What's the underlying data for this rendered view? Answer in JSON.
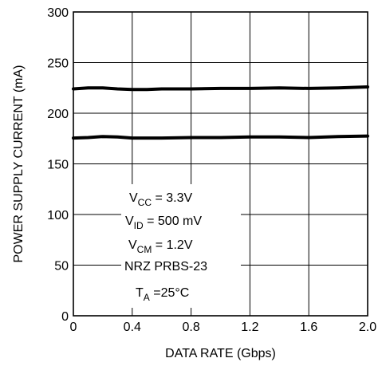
{
  "chart_data": {
    "type": "line",
    "xlabel": "DATA RATE (Gbps)",
    "ylabel": "POWER SUPPLY CURRENT (mA)",
    "xlim": [
      0,
      2.0
    ],
    "ylim": [
      0,
      300
    ],
    "x_ticks": [
      "0",
      "0.4",
      "0.8",
      "1.2",
      "1.6",
      "2.0"
    ],
    "y_ticks": [
      "0",
      "50",
      "100",
      "150",
      "200",
      "250",
      "300"
    ],
    "grid": true,
    "series": [
      {
        "x": [
          0,
          0.1,
          0.2,
          0.3,
          0.4,
          0.5,
          0.6,
          0.8,
          1.0,
          1.2,
          1.4,
          1.6,
          1.8,
          2.0
        ],
        "values": [
          224,
          225,
          225,
          224,
          223.5,
          223.5,
          224,
          224,
          224.5,
          224.5,
          225,
          224.5,
          225,
          226
        ]
      },
      {
        "x": [
          0,
          0.1,
          0.2,
          0.3,
          0.4,
          0.5,
          0.6,
          0.8,
          1.0,
          1.2,
          1.4,
          1.6,
          1.8,
          2.0
        ],
        "values": [
          175.5,
          176,
          177,
          176.5,
          175.5,
          175.5,
          175.5,
          176,
          176,
          176.5,
          176.5,
          176,
          177,
          177.5
        ]
      }
    ],
    "annotation": {
      "vcc": {
        "main": "V",
        "sub": "CC",
        "rest": " = 3.3V"
      },
      "vid": {
        "main": "V",
        "sub": "ID",
        "rest": " = 500 mV"
      },
      "vcm": {
        "main": "V",
        "sub": "CM",
        "rest": " = 1.2V"
      },
      "prbs": "NRZ PRBS-23",
      "ta": {
        "main": "T",
        "sub": "A",
        "rest": " =25°C"
      }
    }
  }
}
